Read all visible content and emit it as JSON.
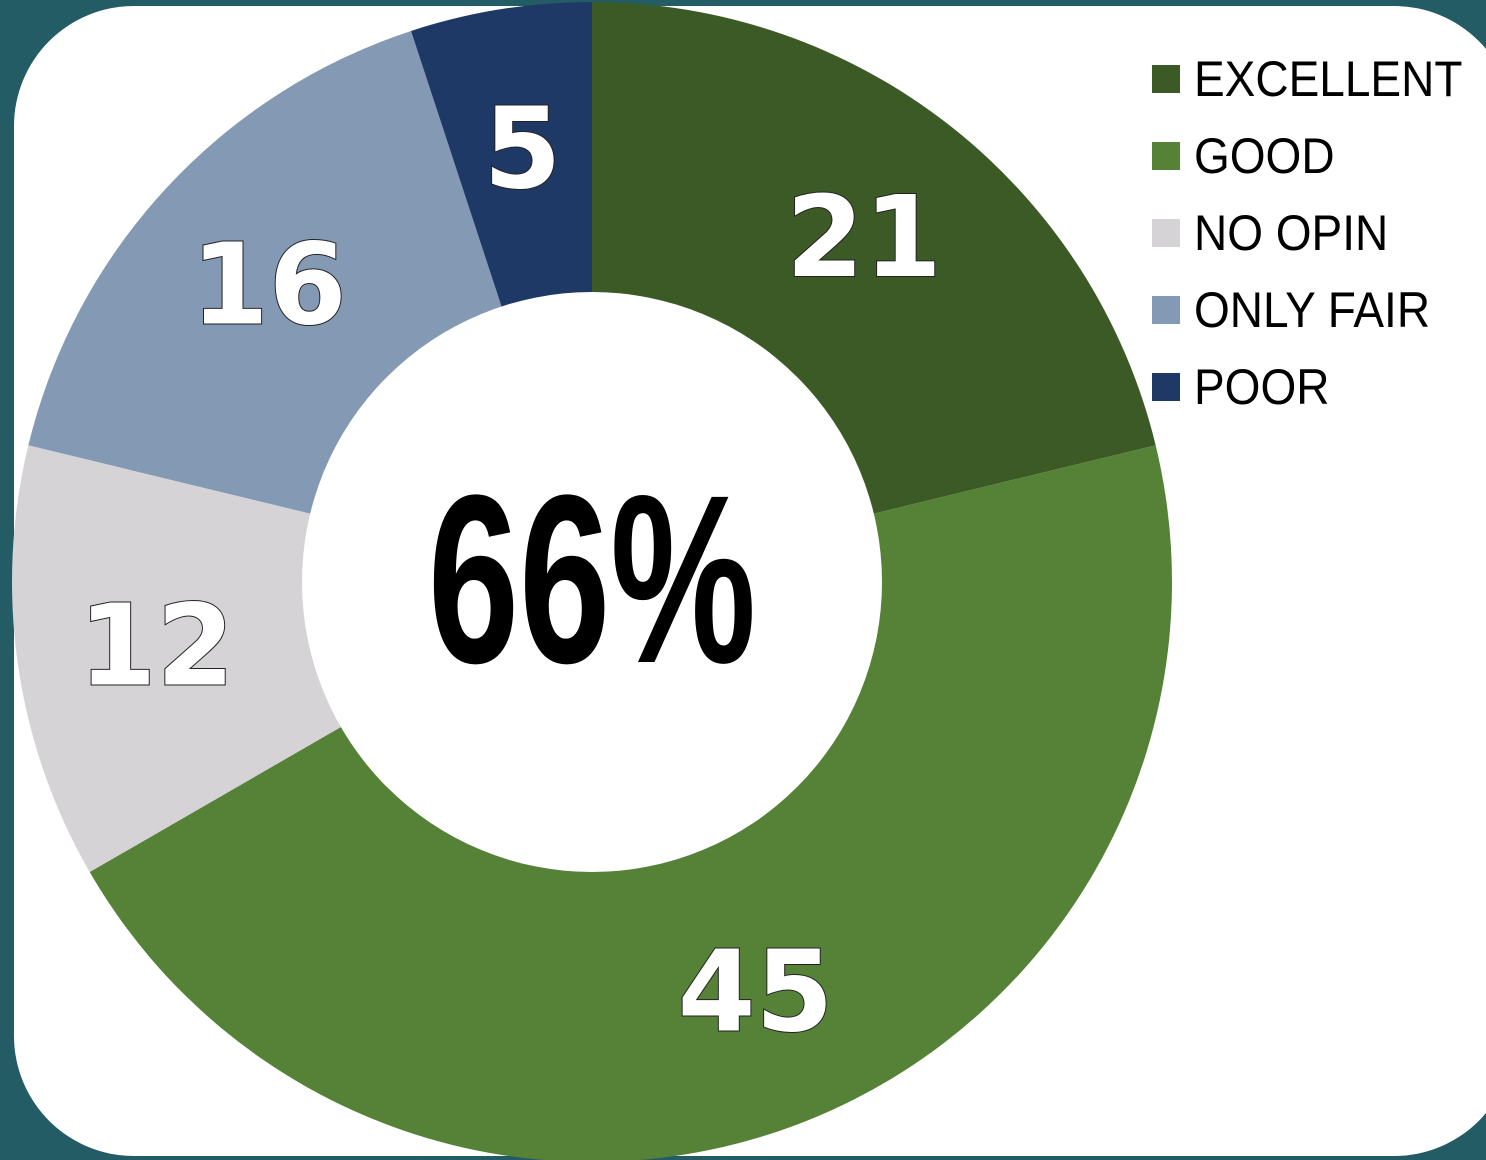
{
  "chart_data": {
    "type": "pie",
    "variant": "donut",
    "categories": [
      "EXCELLENT",
      "GOOD",
      "NO OPIN",
      "ONLY FAIR",
      "POOR"
    ],
    "values": [
      21,
      45,
      12,
      16,
      5
    ],
    "value_labels": [
      "21",
      "45",
      "12",
      "16",
      "5"
    ],
    "colors": [
      "#3b5a25",
      "#558236",
      "#d6d3d6",
      "#8499b3",
      "#1f3966"
    ],
    "center_label": "66%",
    "title": "",
    "legend_position": "top-right"
  }
}
